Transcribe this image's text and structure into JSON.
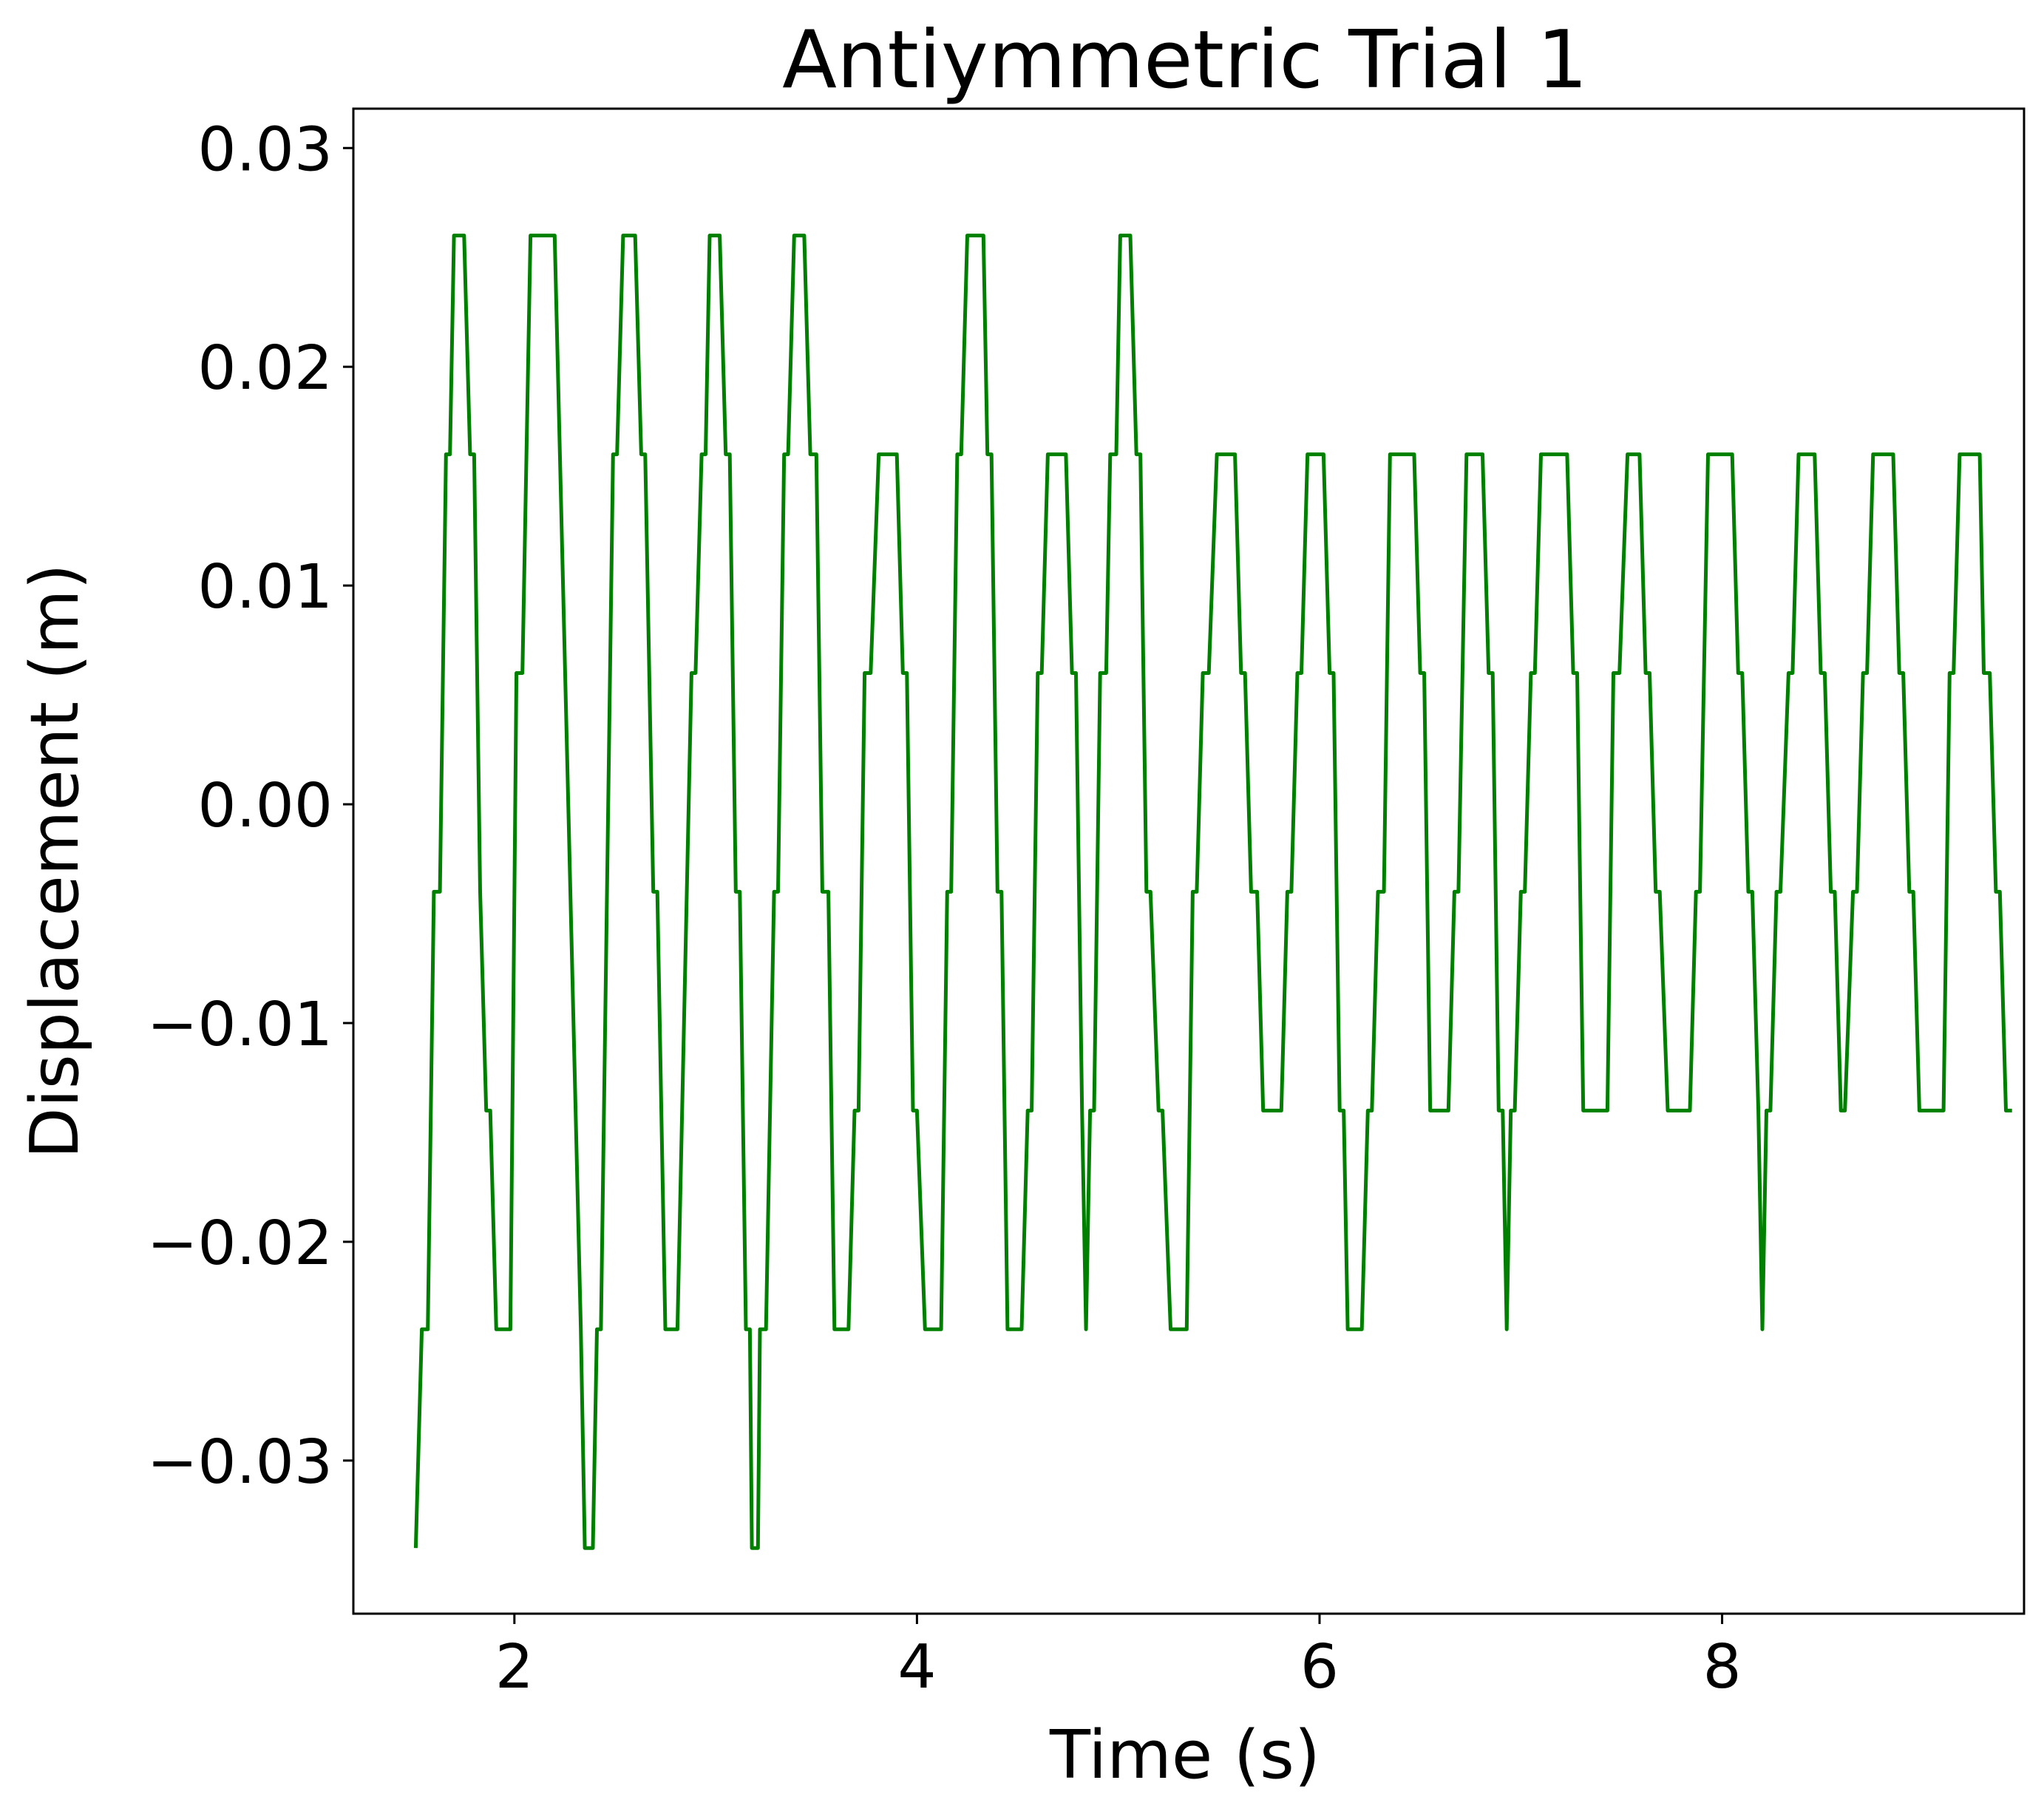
{
  "chart_data": {
    "type": "line",
    "title": "Antiymmetric Trial 1",
    "xlabel": "Time (s)",
    "ylabel": "Displacement (m)",
    "xlim": [
      1.2,
      9.5
    ],
    "ylim": [
      -0.037,
      0.0318
    ],
    "xticks": [
      2,
      4,
      6,
      8
    ],
    "xtick_labels": [
      "2",
      "4",
      "6",
      "8"
    ],
    "yticks": [
      -0.03,
      -0.02,
      -0.01,
      0.0,
      0.01,
      0.02,
      0.03
    ],
    "ytick_labels": [
      "−0.03",
      "−0.02",
      "−0.01",
      "0.00",
      "0.01",
      "0.02",
      "0.03"
    ],
    "grid": false,
    "series": [
      {
        "name": "displacement",
        "color": "#008000",
        "points": [
          [
            1.51,
            -0.034
          ],
          [
            1.54,
            -0.024
          ],
          [
            1.57,
            -0.024
          ],
          [
            1.6,
            -0.004
          ],
          [
            1.63,
            -0.004
          ],
          [
            1.66,
            0.016
          ],
          [
            1.68,
            0.016
          ],
          [
            1.7,
            0.026
          ],
          [
            1.75,
            0.026
          ],
          [
            1.78,
            0.016
          ],
          [
            1.8,
            0.016
          ],
          [
            1.83,
            -0.004
          ],
          [
            1.86,
            -0.014
          ],
          [
            1.88,
            -0.014
          ],
          [
            1.91,
            -0.024
          ],
          [
            1.98,
            -0.024
          ],
          [
            2.01,
            0.006
          ],
          [
            2.04,
            0.006
          ],
          [
            2.08,
            0.026
          ],
          [
            2.2,
            0.026
          ],
          [
            2.33,
            -0.024
          ],
          [
            2.35,
            -0.034
          ],
          [
            2.39,
            -0.034
          ],
          [
            2.41,
            -0.024
          ],
          [
            2.43,
            -0.024
          ],
          [
            2.49,
            0.016
          ],
          [
            2.51,
            0.016
          ],
          [
            2.54,
            0.026
          ],
          [
            2.6,
            0.026
          ],
          [
            2.63,
            0.016
          ],
          [
            2.65,
            0.016
          ],
          [
            2.69,
            -0.004
          ],
          [
            2.71,
            -0.004
          ],
          [
            2.75,
            -0.024
          ],
          [
            2.81,
            -0.024
          ],
          [
            2.88,
            0.006
          ],
          [
            2.9,
            0.006
          ],
          [
            2.93,
            0.016
          ],
          [
            2.95,
            0.016
          ],
          [
            2.97,
            0.026
          ],
          [
            3.02,
            0.026
          ],
          [
            3.05,
            0.016
          ],
          [
            3.07,
            0.016
          ],
          [
            3.1,
            -0.004
          ],
          [
            3.12,
            -0.004
          ],
          [
            3.15,
            -0.024
          ],
          [
            3.17,
            -0.024
          ],
          [
            3.18,
            -0.034
          ],
          [
            3.21,
            -0.034
          ],
          [
            3.22,
            -0.024
          ],
          [
            3.25,
            -0.024
          ],
          [
            3.29,
            -0.004
          ],
          [
            3.31,
            -0.004
          ],
          [
            3.34,
            0.016
          ],
          [
            3.36,
            0.016
          ],
          [
            3.39,
            0.026
          ],
          [
            3.44,
            0.026
          ],
          [
            3.47,
            0.016
          ],
          [
            3.5,
            0.016
          ],
          [
            3.53,
            -0.004
          ],
          [
            3.56,
            -0.004
          ],
          [
            3.59,
            -0.024
          ],
          [
            3.66,
            -0.024
          ],
          [
            3.69,
            -0.014
          ],
          [
            3.71,
            -0.014
          ],
          [
            3.74,
            0.006
          ],
          [
            3.77,
            0.006
          ],
          [
            3.81,
            0.016
          ],
          [
            3.9,
            0.016
          ],
          [
            3.93,
            0.006
          ],
          [
            3.95,
            0.006
          ],
          [
            3.98,
            -0.014
          ],
          [
            4.0,
            -0.014
          ],
          [
            4.04,
            -0.024
          ],
          [
            4.12,
            -0.024
          ],
          [
            4.15,
            -0.004
          ],
          [
            4.17,
            -0.004
          ],
          [
            4.2,
            0.016
          ],
          [
            4.22,
            0.016
          ],
          [
            4.25,
            0.026
          ],
          [
            4.33,
            0.026
          ],
          [
            4.35,
            0.016
          ],
          [
            4.37,
            0.016
          ],
          [
            4.4,
            -0.004
          ],
          [
            4.42,
            -0.004
          ],
          [
            4.45,
            -0.024
          ],
          [
            4.52,
            -0.024
          ],
          [
            4.55,
            -0.014
          ],
          [
            4.57,
            -0.014
          ],
          [
            4.6,
            0.006
          ],
          [
            4.62,
            0.006
          ],
          [
            4.65,
            0.016
          ],
          [
            4.74,
            0.016
          ],
          [
            4.77,
            0.006
          ],
          [
            4.79,
            0.006
          ],
          [
            4.82,
            -0.014
          ],
          [
            4.84,
            -0.024
          ],
          [
            4.86,
            -0.014
          ],
          [
            4.88,
            -0.014
          ],
          [
            4.91,
            0.006
          ],
          [
            4.94,
            0.006
          ],
          [
            4.96,
            0.016
          ],
          [
            4.99,
            0.016
          ],
          [
            5.01,
            0.026
          ],
          [
            5.06,
            0.026
          ],
          [
            5.09,
            0.016
          ],
          [
            5.11,
            0.016
          ],
          [
            5.14,
            -0.004
          ],
          [
            5.16,
            -0.004
          ],
          [
            5.2,
            -0.014
          ],
          [
            5.22,
            -0.014
          ],
          [
            5.26,
            -0.024
          ],
          [
            5.34,
            -0.024
          ],
          [
            5.37,
            -0.004
          ],
          [
            5.39,
            -0.004
          ],
          [
            5.42,
            0.006
          ],
          [
            5.45,
            0.006
          ],
          [
            5.49,
            0.016
          ],
          [
            5.58,
            0.016
          ],
          [
            5.61,
            0.006
          ],
          [
            5.63,
            0.006
          ],
          [
            5.66,
            -0.004
          ],
          [
            5.69,
            -0.004
          ],
          [
            5.72,
            -0.014
          ],
          [
            5.81,
            -0.014
          ],
          [
            5.84,
            -0.004
          ],
          [
            5.86,
            -0.004
          ],
          [
            5.89,
            0.006
          ],
          [
            5.91,
            0.006
          ],
          [
            5.94,
            0.016
          ],
          [
            6.02,
            0.016
          ],
          [
            6.05,
            0.006
          ],
          [
            6.07,
            0.006
          ],
          [
            6.1,
            -0.014
          ],
          [
            6.12,
            -0.014
          ],
          [
            6.14,
            -0.024
          ],
          [
            6.21,
            -0.024
          ],
          [
            6.24,
            -0.014
          ],
          [
            6.26,
            -0.014
          ],
          [
            6.29,
            -0.004
          ],
          [
            6.32,
            -0.004
          ],
          [
            6.35,
            0.016
          ],
          [
            6.47,
            0.016
          ],
          [
            6.5,
            0.006
          ],
          [
            6.52,
            0.006
          ],
          [
            6.55,
            -0.014
          ],
          [
            6.64,
            -0.014
          ],
          [
            6.67,
            -0.004
          ],
          [
            6.69,
            -0.004
          ],
          [
            6.73,
            0.016
          ],
          [
            6.81,
            0.016
          ],
          [
            6.84,
            0.006
          ],
          [
            6.86,
            0.006
          ],
          [
            6.89,
            -0.014
          ],
          [
            6.91,
            -0.014
          ],
          [
            6.93,
            -0.024
          ],
          [
            6.95,
            -0.014
          ],
          [
            6.97,
            -0.014
          ],
          [
            7.0,
            -0.004
          ],
          [
            7.02,
            -0.004
          ],
          [
            7.05,
            0.006
          ],
          [
            7.07,
            0.006
          ],
          [
            7.1,
            0.016
          ],
          [
            7.23,
            0.016
          ],
          [
            7.26,
            0.006
          ],
          [
            7.28,
            0.006
          ],
          [
            7.31,
            -0.014
          ],
          [
            7.43,
            -0.014
          ],
          [
            7.46,
            0.006
          ],
          [
            7.49,
            0.006
          ],
          [
            7.53,
            0.016
          ],
          [
            7.59,
            0.016
          ],
          [
            7.62,
            0.006
          ],
          [
            7.64,
            0.006
          ],
          [
            7.67,
            -0.004
          ],
          [
            7.69,
            -0.004
          ],
          [
            7.73,
            -0.014
          ],
          [
            7.84,
            -0.014
          ],
          [
            7.87,
            -0.004
          ],
          [
            7.89,
            -0.004
          ],
          [
            7.93,
            0.016
          ],
          [
            8.05,
            0.016
          ],
          [
            8.08,
            0.006
          ],
          [
            8.1,
            0.006
          ],
          [
            8.13,
            -0.004
          ],
          [
            8.15,
            -0.004
          ],
          [
            8.18,
            -0.014
          ],
          [
            8.2,
            -0.024
          ],
          [
            8.22,
            -0.014
          ],
          [
            8.24,
            -0.014
          ],
          [
            8.27,
            -0.004
          ],
          [
            8.29,
            -0.004
          ],
          [
            8.33,
            0.006
          ],
          [
            8.35,
            0.006
          ],
          [
            8.38,
            0.016
          ],
          [
            8.46,
            0.016
          ],
          [
            8.49,
            0.006
          ],
          [
            8.51,
            0.006
          ],
          [
            8.54,
            -0.004
          ],
          [
            8.56,
            -0.004
          ],
          [
            8.59,
            -0.014
          ],
          [
            8.61,
            -0.014
          ],
          [
            8.65,
            -0.004
          ],
          [
            8.67,
            -0.004
          ],
          [
            8.7,
            0.006
          ],
          [
            8.72,
            0.006
          ],
          [
            8.75,
            0.016
          ],
          [
            8.85,
            0.016
          ],
          [
            8.88,
            0.006
          ],
          [
            8.9,
            0.006
          ],
          [
            8.93,
            -0.004
          ],
          [
            8.95,
            -0.004
          ],
          [
            8.98,
            -0.014
          ],
          [
            9.1,
            -0.014
          ],
          [
            9.13,
            0.006
          ],
          [
            9.15,
            0.006
          ],
          [
            9.18,
            0.016
          ],
          [
            9.28,
            0.016
          ],
          [
            9.3,
            0.006
          ],
          [
            9.33,
            0.006
          ],
          [
            9.36,
            -0.004
          ],
          [
            9.38,
            -0.004
          ],
          [
            9.41,
            -0.014
          ],
          [
            9.44,
            -0.014
          ]
        ]
      }
    ]
  }
}
